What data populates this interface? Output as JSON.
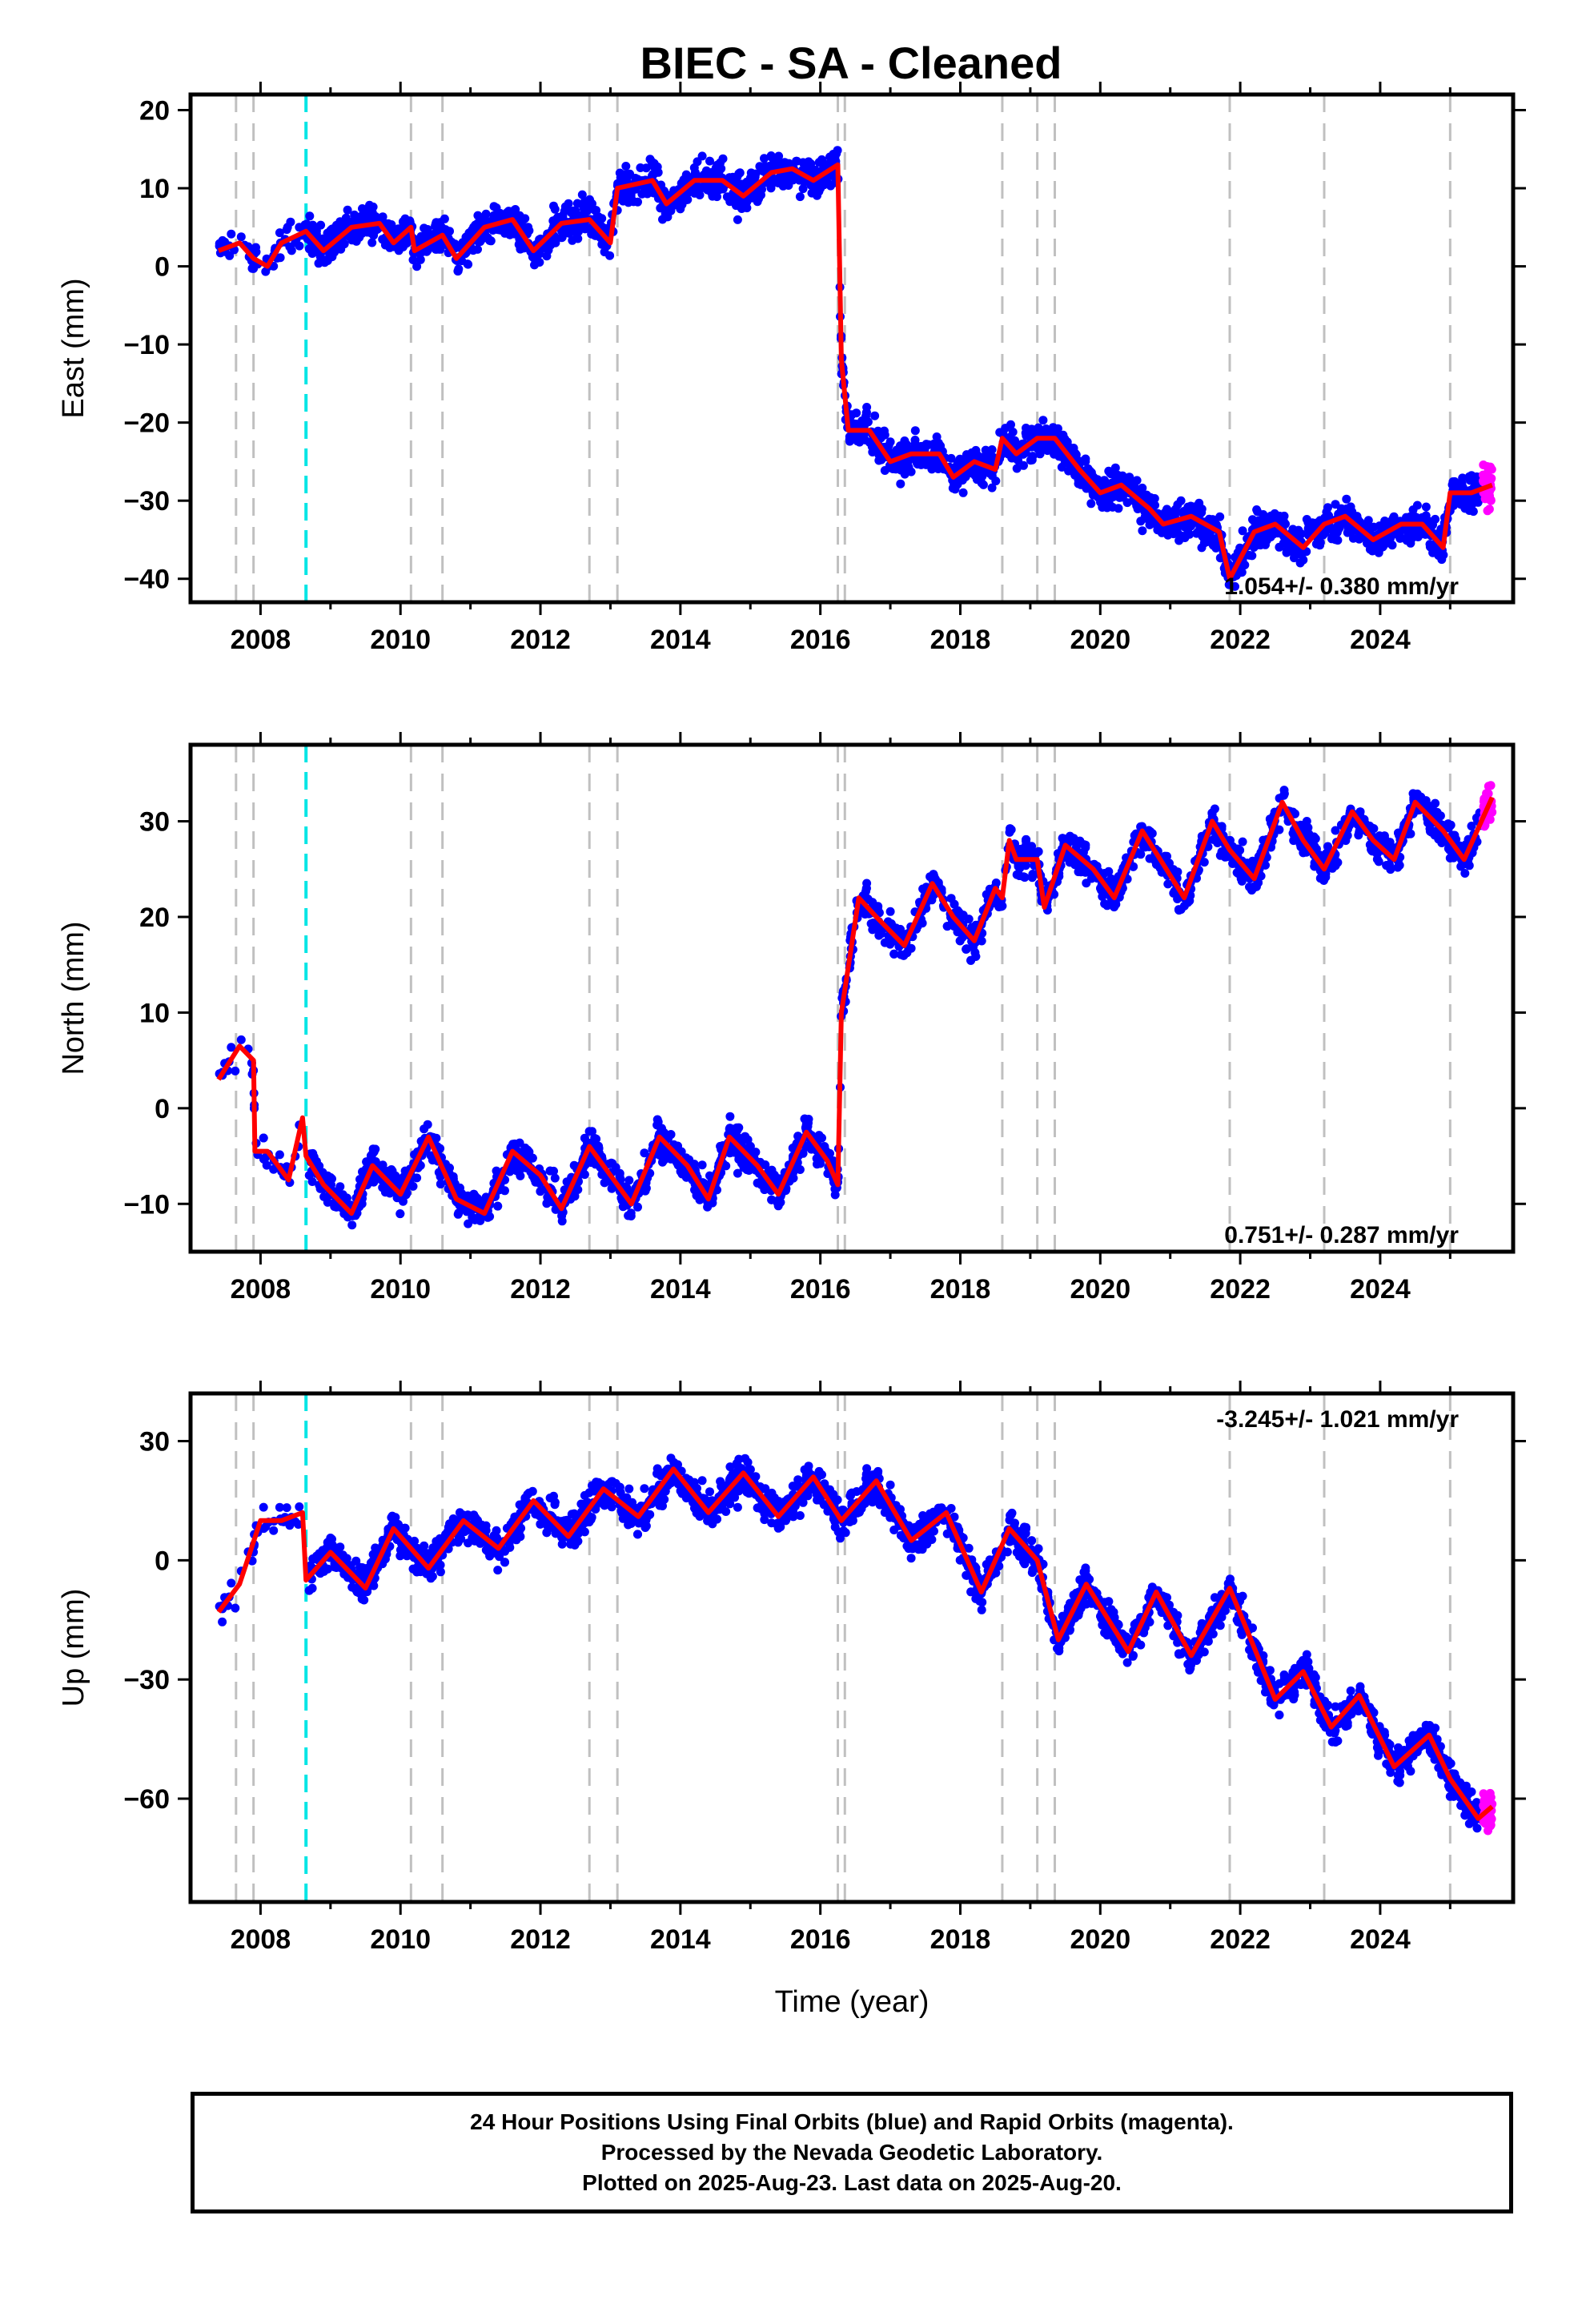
{
  "chart_data": {
    "type": "scatter",
    "title": "BIEC  - SA - Cleaned",
    "xlabel": "Time (year)",
    "xlim": [
      2007.0,
      2025.9
    ],
    "x_ticks": [
      2008,
      2010,
      2012,
      2014,
      2016,
      2018,
      2020,
      2022,
      2024
    ],
    "x_tick_labels": [
      "2008",
      "2010",
      "2012",
      "2014",
      "2016",
      "2018",
      "2020",
      "2022",
      "2024"
    ],
    "equipment_changes_gray": [
      2007.65,
      2007.9,
      2010.15,
      2010.6,
      2012.7,
      2013.1,
      2016.25,
      2016.35,
      2018.6,
      2019.1,
      2019.35,
      2021.85,
      2023.2,
      2025.0
    ],
    "antenna_change_cyan": [
      2008.65
    ],
    "legend_colors": {
      "final_orbits": "#0000ff",
      "rapid_orbits": "#ff00ff",
      "model": "#ff0000",
      "equip": "#c0c0c0",
      "antenna": "#00e5e5"
    },
    "panels": [
      {
        "name": "east",
        "ylabel": "East (mm)",
        "ylim": [
          -43,
          22
        ],
        "y_ticks": [
          20,
          10,
          0,
          -10,
          -20,
          -30,
          -40
        ],
        "y_tick_labels": [
          "20",
          "10",
          "0",
          "−10",
          "−20",
          "−30",
          "−40"
        ],
        "rate_text": "1.054+/- 0.380 mm/yr",
        "model": [
          [
            2007.4,
            2
          ],
          [
            2007.7,
            3
          ],
          [
            2007.9,
            1
          ],
          [
            2008.1,
            0
          ],
          [
            2008.3,
            3
          ],
          [
            2008.65,
            4.5
          ],
          [
            2008.9,
            2
          ],
          [
            2009.3,
            5
          ],
          [
            2009.7,
            5.5
          ],
          [
            2009.9,
            3
          ],
          [
            2010.15,
            5
          ],
          [
            2010.2,
            2
          ],
          [
            2010.6,
            4
          ],
          [
            2010.8,
            1
          ],
          [
            2011.2,
            5
          ],
          [
            2011.6,
            6
          ],
          [
            2011.9,
            2
          ],
          [
            2012.3,
            5.5
          ],
          [
            2012.7,
            6
          ],
          [
            2013.0,
            3
          ],
          [
            2013.1,
            10
          ],
          [
            2013.6,
            11
          ],
          [
            2013.8,
            8
          ],
          [
            2014.2,
            11
          ],
          [
            2014.6,
            11
          ],
          [
            2014.9,
            9
          ],
          [
            2015.3,
            12
          ],
          [
            2015.6,
            12.5
          ],
          [
            2015.9,
            11
          ],
          [
            2016.25,
            13
          ],
          [
            2016.3,
            -12
          ],
          [
            2016.4,
            -21
          ],
          [
            2016.7,
            -21
          ],
          [
            2017.0,
            -25
          ],
          [
            2017.3,
            -24
          ],
          [
            2017.7,
            -24
          ],
          [
            2017.9,
            -27
          ],
          [
            2018.2,
            -25
          ],
          [
            2018.5,
            -26
          ],
          [
            2018.6,
            -22
          ],
          [
            2018.8,
            -24
          ],
          [
            2019.1,
            -22
          ],
          [
            2019.35,
            -22
          ],
          [
            2019.7,
            -26
          ],
          [
            2020.0,
            -29
          ],
          [
            2020.3,
            -28
          ],
          [
            2020.7,
            -31
          ],
          [
            2020.9,
            -33
          ],
          [
            2021.3,
            -32
          ],
          [
            2021.7,
            -34
          ],
          [
            2021.85,
            -40
          ],
          [
            2022.2,
            -34
          ],
          [
            2022.5,
            -33
          ],
          [
            2022.9,
            -36
          ],
          [
            2023.2,
            -33
          ],
          [
            2023.5,
            -32
          ],
          [
            2023.9,
            -35
          ],
          [
            2024.3,
            -33
          ],
          [
            2024.6,
            -33
          ],
          [
            2024.9,
            -36
          ],
          [
            2025.0,
            -29
          ],
          [
            2025.3,
            -29
          ],
          [
            2025.6,
            -28
          ]
        ]
      },
      {
        "name": "north",
        "ylabel": "North (mm)",
        "ylim": [
          -15,
          38
        ],
        "y_ticks": [
          30,
          20,
          10,
          0,
          -10
        ],
        "y_tick_labels": [
          "30",
          "20",
          "10",
          "0",
          "−10"
        ],
        "rate_text": "0.751+/- 0.287 mm/yr",
        "model": [
          [
            2007.4,
            3
          ],
          [
            2007.7,
            6.5
          ],
          [
            2007.9,
            5
          ],
          [
            2007.92,
            -4.5
          ],
          [
            2008.1,
            -4.5
          ],
          [
            2008.4,
            -7.5
          ],
          [
            2008.6,
            -1
          ],
          [
            2008.65,
            -5
          ],
          [
            2008.9,
            -8
          ],
          [
            2009.3,
            -11
          ],
          [
            2009.6,
            -6
          ],
          [
            2010.0,
            -9
          ],
          [
            2010.4,
            -3
          ],
          [
            2010.8,
            -9.5
          ],
          [
            2011.2,
            -11
          ],
          [
            2011.6,
            -4.5
          ],
          [
            2012.0,
            -7
          ],
          [
            2012.3,
            -10.5
          ],
          [
            2012.7,
            -4
          ],
          [
            2013.0,
            -7
          ],
          [
            2013.3,
            -10
          ],
          [
            2013.7,
            -3
          ],
          [
            2014.1,
            -6
          ],
          [
            2014.4,
            -9.5
          ],
          [
            2014.7,
            -3
          ],
          [
            2015.1,
            -6
          ],
          [
            2015.4,
            -9
          ],
          [
            2015.8,
            -2.5
          ],
          [
            2016.1,
            -5.5
          ],
          [
            2016.25,
            -8
          ],
          [
            2016.3,
            10
          ],
          [
            2016.55,
            22
          ],
          [
            2016.8,
            20
          ],
          [
            2017.2,
            17
          ],
          [
            2017.6,
            23.5
          ],
          [
            2017.9,
            20
          ],
          [
            2018.2,
            17.5
          ],
          [
            2018.5,
            23
          ],
          [
            2018.6,
            22
          ],
          [
            2018.7,
            28
          ],
          [
            2018.8,
            26
          ],
          [
            2019.1,
            26
          ],
          [
            2019.2,
            21
          ],
          [
            2019.5,
            27.5
          ],
          [
            2019.9,
            25
          ],
          [
            2020.2,
            22
          ],
          [
            2020.6,
            29
          ],
          [
            2020.9,
            25.5
          ],
          [
            2021.2,
            22
          ],
          [
            2021.6,
            30
          ],
          [
            2021.85,
            27
          ],
          [
            2022.2,
            24
          ],
          [
            2022.6,
            32
          ],
          [
            2022.9,
            28
          ],
          [
            2023.2,
            25
          ],
          [
            2023.6,
            31
          ],
          [
            2023.9,
            28
          ],
          [
            2024.2,
            26
          ],
          [
            2024.5,
            32
          ],
          [
            2024.9,
            29
          ],
          [
            2025.2,
            26
          ],
          [
            2025.6,
            32.5
          ]
        ]
      },
      {
        "name": "up",
        "ylabel": "Up (mm)",
        "ylim": [
          -86,
          42
        ],
        "y_ticks": [
          30,
          0,
          -30,
          -60
        ],
        "y_tick_labels": [
          "30",
          "0",
          "−30",
          "−60"
        ],
        "rate_text": "-3.245+/- 1.021 mm/yr",
        "model": [
          [
            2007.4,
            -13
          ],
          [
            2007.7,
            -6
          ],
          [
            2008.0,
            10
          ],
          [
            2008.3,
            10
          ],
          [
            2008.6,
            12
          ],
          [
            2008.65,
            -5
          ],
          [
            2009.0,
            2
          ],
          [
            2009.5,
            -7
          ],
          [
            2009.9,
            8
          ],
          [
            2010.4,
            -2
          ],
          [
            2010.9,
            10
          ],
          [
            2011.4,
            3
          ],
          [
            2011.9,
            15
          ],
          [
            2012.4,
            6
          ],
          [
            2012.9,
            18
          ],
          [
            2013.4,
            11
          ],
          [
            2013.9,
            23
          ],
          [
            2014.4,
            12
          ],
          [
            2014.9,
            22
          ],
          [
            2015.4,
            11
          ],
          [
            2015.9,
            21
          ],
          [
            2016.3,
            10
          ],
          [
            2016.8,
            20
          ],
          [
            2017.3,
            5
          ],
          [
            2017.8,
            12
          ],
          [
            2018.3,
            -8
          ],
          [
            2018.7,
            8
          ],
          [
            2019.1,
            0
          ],
          [
            2019.4,
            -20
          ],
          [
            2019.8,
            -6
          ],
          [
            2020.4,
            -23
          ],
          [
            2020.8,
            -8
          ],
          [
            2021.3,
            -24
          ],
          [
            2021.85,
            -7
          ],
          [
            2022.2,
            -22
          ],
          [
            2022.5,
            -35
          ],
          [
            2022.9,
            -28
          ],
          [
            2023.3,
            -42
          ],
          [
            2023.7,
            -34
          ],
          [
            2024.2,
            -52
          ],
          [
            2024.7,
            -44
          ],
          [
            2025.0,
            -55
          ],
          [
            2025.4,
            -65
          ],
          [
            2025.6,
            -62
          ]
        ]
      }
    ]
  },
  "footer": {
    "line1": "24 Hour Positions Using Final Orbits (blue) and Rapid Orbits (magenta).",
    "line2": "Processed by the Nevada Geodetic Laboratory.",
    "line3": "Plotted on 2025-Aug-23. Last data on 2025-Aug-20."
  }
}
